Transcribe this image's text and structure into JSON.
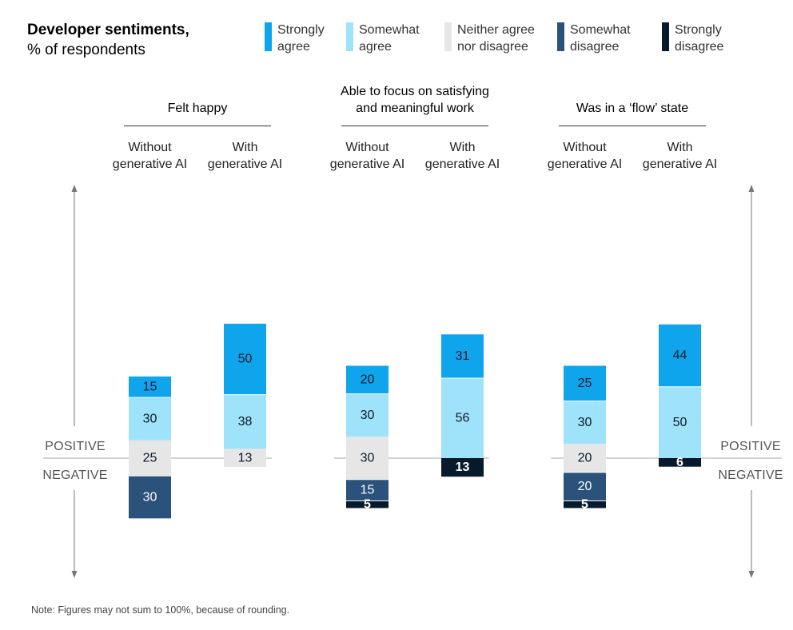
{
  "chart_data": {
    "type": "bar",
    "stacked": "diverging",
    "title": "Developer sentiments,",
    "subtitle": "% of respondents",
    "note": "Note: Figures may not sum to 100%, because of rounding.",
    "axis_words": {
      "positive": "POSITIVE",
      "negative": "NEGATIVE"
    },
    "series": [
      {
        "name": "Strongly agree",
        "name_lines": [
          "Strongly",
          "agree"
        ],
        "color": "#0fa5ed",
        "text_color": "#0b1a2b"
      },
      {
        "name": "Somewhat agree",
        "name_lines": [
          "Somewhat",
          "agree"
        ],
        "color": "#9fe3fa",
        "text_color": "#0b1a2b"
      },
      {
        "name": "Neither agree nor disagree",
        "name_lines": [
          "Neither agree",
          "nor disagree"
        ],
        "color": "#e6e6e6",
        "text_color": "#0b1a2b"
      },
      {
        "name": "Somewhat disagree",
        "name_lines": [
          "Somewhat",
          "disagree"
        ],
        "color": "#2a527a",
        "text_color": "#ffffff"
      },
      {
        "name": "Strongly disagree",
        "name_lines": [
          "Strongly",
          "disagree"
        ],
        "color": "#061a2c",
        "text_color": "#ffffff"
      }
    ],
    "groups": [
      {
        "title_lines": [
          "Felt happy"
        ],
        "bars": [
          {
            "label_lines": [
              "Without",
              "generative AI"
            ],
            "values": [
              15,
              30,
              25,
              30,
              0
            ]
          },
          {
            "label_lines": [
              "With",
              "generative AI"
            ],
            "values": [
              50,
              38,
              13,
              0,
              0
            ]
          }
        ]
      },
      {
        "title_lines": [
          "Able to focus on satisfying",
          "and meaningful work"
        ],
        "bars": [
          {
            "label_lines": [
              "Without",
              "generative AI"
            ],
            "values": [
              20,
              30,
              30,
              15,
              5
            ]
          },
          {
            "label_lines": [
              "With",
              "generative AI"
            ],
            "values": [
              31,
              56,
              0,
              0,
              13
            ]
          }
        ]
      },
      {
        "title_lines": [
          "Was in a ‘flow’ state"
        ],
        "bars": [
          {
            "label_lines": [
              "Without",
              "generative AI"
            ],
            "values": [
              25,
              30,
              20,
              20,
              5
            ]
          },
          {
            "label_lines": [
              "With",
              "generative AI"
            ],
            "values": [
              44,
              50,
              0,
              0,
              6
            ]
          }
        ]
      }
    ]
  }
}
